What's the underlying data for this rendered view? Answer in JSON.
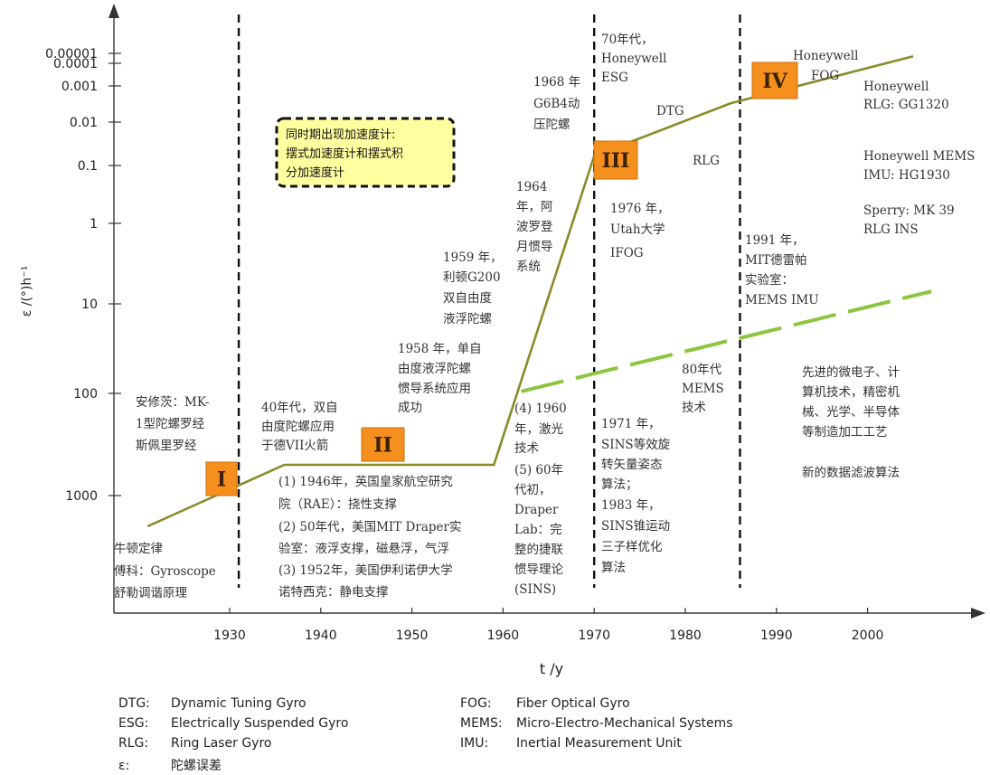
{
  "chart_data": {
    "type": "line",
    "xlabel": "t /y",
    "ylabel": "ε /(°)h⁻¹",
    "xlim": [
      1920,
      2010
    ],
    "y_scale": "log (reversed)",
    "x_ticks": [
      "1930",
      "1940",
      "1950",
      "1960",
      "1970",
      "1980",
      "1990",
      "2000"
    ],
    "y_ticks": [
      "0.00001",
      "0.0001",
      "0.001",
      "0.01",
      "0.1",
      "1",
      "10",
      "100",
      "1000"
    ],
    "series": [
      {
        "name": "",
        "color": "#8a8a2a",
        "points": [
          [
            1921,
            2000
          ],
          [
            1936,
            500
          ],
          [
            1959,
            500
          ],
          [
            1970,
            0.06
          ],
          [
            1985,
            0.003
          ],
          [
            2005,
            2e-05
          ]
        ]
      },
      {
        "name": "",
        "color": "#8cc63f",
        "style": "dashed",
        "points": [
          [
            1962,
            95
          ],
          [
            2007,
            7
          ]
        ]
      }
    ],
    "era_markers": [
      {
        "label": "I"
      },
      {
        "label": "II"
      },
      {
        "label": "III"
      },
      {
        "label": "IV"
      }
    ],
    "vertical_dashed_lines": [
      1931,
      1970,
      1986
    ]
  },
  "callout": {
    "lines": [
      "同时期出现加速度计:",
      "摆式加速度计和摆式积",
      "分加速度计"
    ]
  },
  "annotations": {
    "newton": [
      "牛顿定律",
      "傅科：Gyroscope",
      "舒勒调谐原理"
    ],
    "anschutz": [
      "安修茨：MK-",
      "1型陀螺罗经",
      "斯佩里罗经"
    ],
    "forties": [
      "40年代，双自",
      "由度陀螺应用",
      "于德VII火箭"
    ],
    "era2_list": [
      "(1) 1946年，英国皇家航空研究",
      "院（RAE）：挠性支撑",
      "(2) 50年代，美国MIT Draper实",
      "验室：液浮支撑，磁悬浮，气浮",
      "(3) 1952年，美国伊利诺伊大学",
      "诺特西克：静电支撑"
    ],
    "y1958": [
      "1958 年，单自",
      "由度液浮陀螺",
      "惯导系统应用",
      "成功"
    ],
    "y1959": [
      "1959 年，",
      "利顿G200",
      "双自由度",
      "液浮陀螺"
    ],
    "y1964": [
      "1964",
      "年，阿",
      "波罗登",
      "月惯导",
      "系统"
    ],
    "y1968": [
      "1968 年",
      "G6B4动",
      "压陀螺"
    ],
    "laser": [
      "(4) 1960",
      "年，激光",
      "技术",
      "(5) 60年",
      "代初，",
      "Draper",
      "Lab：完",
      "整的捷联",
      "惯导理论",
      "(SINS)"
    ],
    "seventies": [
      "70年代，",
      "Honeywell",
      "ESG"
    ],
    "dtg": "DTG",
    "rlg": "RLG",
    "y1976": [
      "1976 年，",
      "Utah大学",
      "IFOG"
    ],
    "y1971": [
      "1971 年，",
      "SINS等效旋",
      "转矢量姿态",
      "算法；",
      "1983 年，",
      "SINS锥运动",
      "三子样优化",
      "算法"
    ],
    "mems80": [
      "80年代",
      "MEMS",
      "技术"
    ],
    "y1991": [
      "1991 年，",
      "MIT德雷帕",
      "实验室：",
      "MEMS IMU"
    ],
    "hw_fog": [
      "Honeywell",
      "FOG"
    ],
    "hw_rlg": [
      "Honeywell",
      "RLG: GG1320"
    ],
    "hw_mems": [
      "Honeywell MEMS",
      "IMU: HG1930"
    ],
    "sperry": [
      "Sperry: MK 39",
      "RLG INS"
    ],
    "advanced": [
      "先进的微电子、计",
      "算机技术，精密机",
      "械、光学、半导体",
      "等制造加工工艺"
    ],
    "filter": "新的数据滤波算法"
  },
  "legend": [
    {
      "key": "DTG:",
      "text": "Dynamic Tuning Gyro"
    },
    {
      "key": "ESG:",
      "text": "Electrically Suspended Gyro"
    },
    {
      "key": "RLG:",
      "text": "Ring Laser Gyro"
    },
    {
      "key": "ε:",
      "text": "陀螺误差"
    },
    {
      "key": "FOG:",
      "text": "Fiber Optical Gyro"
    },
    {
      "key": "MEMS:",
      "text": "Micro-Electro-Mechanical Systems"
    },
    {
      "key": "IMU:",
      "text": "Inertial Measurement Unit"
    }
  ]
}
